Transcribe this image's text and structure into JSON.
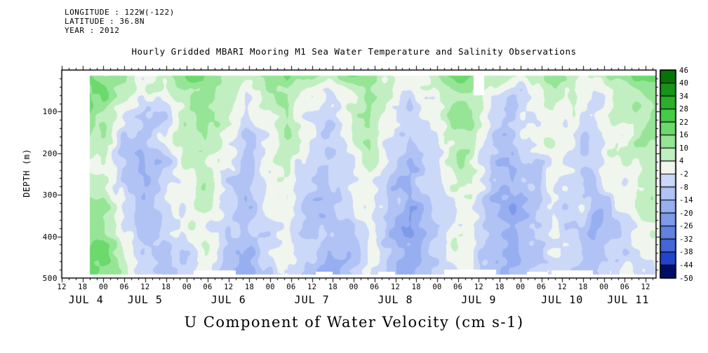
{
  "header": {
    "longitude": "LONGITUDE : 122W(-122)",
    "latitude": "LATITUDE : 36.8N",
    "year": "YEAR : 2012"
  },
  "title": "Hourly Gridded MBARI Mooring M1 Sea Water Temperature and Salinity Observations",
  "bottom_title": "U Component of Water Velocity (cm s-1)",
  "axes": {
    "ylabel": "DEPTH (m)",
    "y_tick_labels": [
      "100",
      "200",
      "300",
      "400",
      "500"
    ],
    "y_tick_depths": [
      100,
      200,
      300,
      400,
      500
    ],
    "x_hour_labels": [
      "12",
      "18",
      "00",
      "06",
      "12",
      "18",
      "00",
      "06",
      "12",
      "18",
      "00",
      "06",
      "12",
      "18",
      "00",
      "06",
      "12",
      "18",
      "00",
      "06",
      "12",
      "18",
      "00",
      "06",
      "12",
      "18",
      "00",
      "06",
      "12"
    ],
    "x_tick_hours_start": 0,
    "x_tick_hour_step": 6,
    "x_day_labels": [
      "JUL 4",
      "JUL 5",
      "JUL 6",
      "JUL 7",
      "JUL 8",
      "JUL 9",
      "JUL 10",
      "JUL 11"
    ],
    "x_day_center_hours": [
      7,
      24,
      48,
      72,
      96,
      120,
      144,
      163
    ]
  },
  "colorbar": {
    "labels": [
      "46",
      "40",
      "34",
      "28",
      "22",
      "16",
      "10",
      "4",
      "-2",
      "-8",
      "-14",
      "-20",
      "-26",
      "-32",
      "-38",
      "-44",
      "-50"
    ],
    "colors_ascending": [
      "#000d66",
      "#2244cc",
      "#4466d8",
      "#6282e2",
      "#7e9ae9",
      "#97aff0",
      "#b1c3f4",
      "#ccd8f8",
      "#f0f6ee",
      "#c2efc2",
      "#96e596",
      "#6cd96c",
      "#44cc44",
      "#2ab02a",
      "#179317",
      "#067306"
    ],
    "level_min": -50,
    "level_step": 6,
    "level_max": 46
  },
  "chart_data": {
    "type": "heatmap",
    "title": "Hourly Gridded MBARI Mooring M1 Sea Water Temperature and Salinity Observations",
    "variable": "U Component of Water Velocity",
    "units": "cm s-1",
    "x_axis": "time, 6-hourly ticks from Jul 4 12:00 to Jul 11 12:00, 2012",
    "x_range_hours": [
      0,
      171
    ],
    "y_axis": "depth (m)",
    "y_range": [
      0,
      500
    ],
    "color_levels": [
      -50,
      -44,
      -38,
      -32,
      -26,
      -20,
      -14,
      -8,
      -2,
      4,
      10,
      16,
      22,
      28,
      34,
      40,
      46
    ],
    "row_depths": [
      0,
      60,
      120,
      180,
      240,
      300,
      360,
      420,
      500
    ],
    "col_count": 30,
    "values": [
      [
        14,
        18,
        16,
        12,
        6,
        10,
        14,
        18,
        12,
        8,
        14,
        18,
        10,
        6,
        12,
        16,
        8,
        4,
        10,
        16,
        18,
        6,
        2,
        8,
        14,
        10,
        6,
        12,
        16,
        18
      ],
      [
        10,
        14,
        12,
        4,
        -4,
        2,
        10,
        16,
        8,
        -2,
        8,
        14,
        4,
        -2,
        6,
        12,
        2,
        -6,
        4,
        12,
        14,
        0,
        -6,
        2,
        10,
        6,
        -2,
        8,
        12,
        14
      ],
      [
        6,
        10,
        8,
        -2,
        -8,
        -4,
        6,
        12,
        4,
        -6,
        4,
        10,
        -2,
        -8,
        2,
        8,
        -4,
        -10,
        0,
        8,
        10,
        -4,
        -10,
        -2,
        6,
        2,
        -6,
        4,
        8,
        10
      ],
      [
        4,
        8,
        6,
        -6,
        -10,
        -6,
        4,
        10,
        0,
        -8,
        2,
        8,
        -4,
        -10,
        -2,
        6,
        -6,
        -12,
        -2,
        6,
        8,
        -6,
        -12,
        -4,
        4,
        0,
        -8,
        2,
        6,
        8
      ],
      [
        2,
        8,
        10,
        -4,
        -12,
        -8,
        2,
        8,
        -2,
        -10,
        0,
        6,
        -6,
        -12,
        -4,
        4,
        -8,
        -14,
        -4,
        4,
        6,
        -8,
        -14,
        -6,
        2,
        -2,
        -10,
        0,
        4,
        6
      ],
      [
        4,
        10,
        12,
        0,
        -10,
        -10,
        0,
        6,
        -4,
        -12,
        -2,
        4,
        -8,
        -14,
        -6,
        2,
        -10,
        -14,
        -6,
        2,
        4,
        -10,
        -14,
        -8,
        0,
        -4,
        -12,
        -2,
        2,
        4
      ],
      [
        6,
        12,
        14,
        4,
        -8,
        -12,
        -2,
        4,
        -6,
        -12,
        -4,
        2,
        -10,
        -14,
        -8,
        0,
        -10,
        -16,
        -8,
        0,
        2,
        -10,
        -16,
        -8,
        -2,
        -6,
        -12,
        -4,
        0,
        2
      ],
      [
        8,
        14,
        16,
        6,
        -6,
        -10,
        -4,
        2,
        -8,
        -14,
        -6,
        0,
        -10,
        -16,
        -8,
        -2,
        -12,
        -16,
        -8,
        -2,
        0,
        -12,
        -16,
        -10,
        -4,
        -8,
        -14,
        -6,
        -2,
        0
      ],
      [
        10,
        16,
        18,
        8,
        -4,
        -8,
        -4,
        0,
        -8,
        -14,
        -6,
        -2,
        -12,
        -16,
        -10,
        -4,
        -12,
        -18,
        -10,
        -4,
        -2,
        -12,
        -18,
        -10,
        -6,
        -8,
        -14,
        -6,
        -2,
        2
      ]
    ],
    "missing_regions": [
      {
        "h": [
          0,
          8
        ],
        "d": [
          0,
          500
        ]
      },
      {
        "h": [
          0,
          171
        ],
        "d": [
          0,
          13
        ]
      },
      {
        "h": [
          0,
          171
        ],
        "d": [
          492,
          500
        ]
      },
      {
        "h": [
          38,
          50
        ],
        "d": [
          483,
          500
        ]
      },
      {
        "h": [
          73,
          78
        ],
        "d": [
          486,
          500
        ]
      },
      {
        "h": [
          91,
          96
        ],
        "d": [
          485,
          500
        ]
      },
      {
        "h": [
          110,
          125
        ],
        "d": [
          480,
          500
        ]
      },
      {
        "h": [
          134,
          140
        ],
        "d": [
          486,
          500
        ]
      },
      {
        "h": [
          141,
          153
        ],
        "d": [
          482,
          500
        ]
      },
      {
        "h": [
          118.5,
          121.5
        ],
        "d": [
          13,
          60
        ]
      }
    ]
  }
}
